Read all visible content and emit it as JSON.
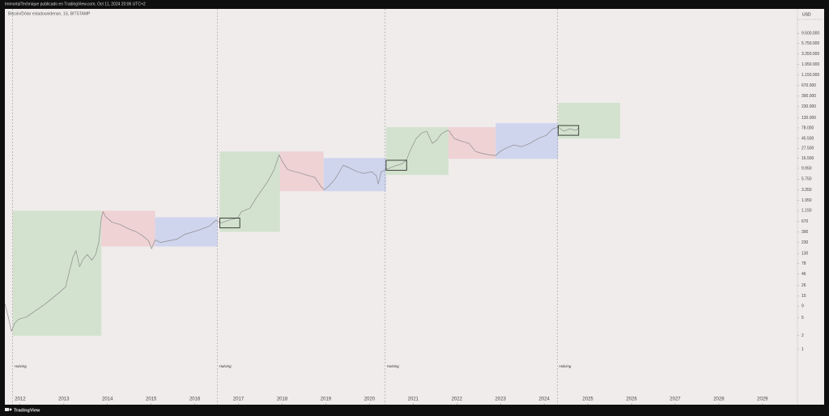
{
  "header": "ImmortalTechnique publicado en TradingView.com, Oct 11, 2024 20:06 UTC+2",
  "footer": "TradingView",
  "chart_data": {
    "type": "line",
    "currency": "USD",
    "log_scale": true,
    "grid": false,
    "xlim": [
      2011.65,
      2029.8
    ],
    "xticks": [
      2012,
      2013,
      2014,
      2015,
      2016,
      2017,
      2018,
      2019,
      2020,
      2021,
      2022,
      2023,
      2024,
      2025,
      2026,
      2027,
      2028,
      2029
    ],
    "ylim": [
      0.06,
      33000000
    ],
    "yticks": [
      {
        "value": 9500000,
        "label": "9.500.000"
      },
      {
        "value": 5750000,
        "label": "5.750.000"
      },
      {
        "value": 3350000,
        "label": "3.350.000"
      },
      {
        "value": 1950000,
        "label": "1.950.000"
      },
      {
        "value": 1150000,
        "label": "1.150.000"
      },
      {
        "value": 670000,
        "label": "670.000"
      },
      {
        "value": 390000,
        "label": "390.000"
      },
      {
        "value": 230000,
        "label": "230.000"
      },
      {
        "value": 130000,
        "label": "130.000"
      },
      {
        "value": 78000,
        "label": "78.000"
      },
      {
        "value": 45500,
        "label": "45.500"
      },
      {
        "value": 27500,
        "label": "27.500"
      },
      {
        "value": 16500,
        "label": "16.500"
      },
      {
        "value": 9950,
        "label": "9.950"
      },
      {
        "value": 5750,
        "label": "5.750"
      },
      {
        "value": 3350,
        "label": "3.350"
      },
      {
        "value": 1950,
        "label": "1.950"
      },
      {
        "value": 1150,
        "label": "1.150"
      },
      670,
      390,
      230,
      130,
      78,
      46,
      26,
      15,
      9,
      5,
      2,
      1
    ],
    "x": [
      2011.65,
      2011.72,
      2011.8,
      2011.87,
      2011.96,
      2012.15,
      2012.33,
      2012.52,
      2012.71,
      2012.89,
      2013.04,
      2013.13,
      2013.21,
      2013.28,
      2013.36,
      2013.45,
      2013.54,
      2013.64,
      2013.73,
      2013.8,
      2013.86,
      2013.9,
      2013.95,
      2014.1,
      2014.29,
      2014.47,
      2014.66,
      2014.81,
      2014.94,
      2015.01,
      2015.09,
      2015.22,
      2015.4,
      2015.59,
      2015.77,
      2015.96,
      2016.14,
      2016.33,
      2016.48,
      2016.61,
      2016.8,
      2016.98,
      2017.07,
      2017.26,
      2017.41,
      2017.54,
      2017.67,
      2017.82,
      2017.93,
      2018.0,
      2018.12,
      2018.23,
      2018.38,
      2018.56,
      2018.75,
      2018.9,
      2018.97,
      2019.08,
      2019.21,
      2019.4,
      2019.53,
      2019.68,
      2019.86,
      2020.05,
      2020.16,
      2020.2,
      2020.27,
      2020.38,
      2020.57,
      2020.75,
      2020.85,
      2020.94,
      2021.07,
      2021.2,
      2021.31,
      2021.44,
      2021.54,
      2021.65,
      2021.78,
      2021.83,
      2021.94,
      2022.09,
      2022.28,
      2022.43,
      2022.56,
      2022.74,
      2022.89,
      2022.99,
      2023.12,
      2023.3,
      2023.49,
      2023.67,
      2023.86,
      2024.05,
      2024.2,
      2024.32,
      2024.45,
      2024.59,
      2024.73,
      2024.79
    ],
    "series": [
      {
        "name": "Bitcoin/Dólar estadounidense, 1S, BITSTAMP",
        "color": "#8c8c8c",
        "values": [
          10.4,
          5.6,
          2.5,
          3.7,
          4.6,
          5.2,
          6.9,
          9.2,
          12.8,
          17.8,
          23.8,
          54,
          109,
          152,
          67,
          101,
          124,
          93,
          124,
          230,
          794,
          1104,
          862,
          645,
          570,
          464,
          393,
          320,
          250,
          166,
          260,
          230,
          250,
          271,
          347,
          393,
          445,
          525,
          701,
          619,
          730,
          794,
          1104,
          1300,
          2230,
          3360,
          5080,
          9430,
          19800,
          14300,
          9430,
          8680,
          7990,
          7070,
          6250,
          3810,
          3360,
          4140,
          5750,
          11600,
          10300,
          8680,
          7670,
          8340,
          6780,
          4490,
          8340,
          9430,
          11100,
          12600,
          15500,
          25400,
          45300,
          60400,
          65600,
          35300,
          41700,
          58000,
          68300,
          65600,
          45300,
          40000,
          35300,
          23400,
          21500,
          19800,
          19000,
          23400,
          27600,
          32600,
          30000,
          35300,
          45300,
          53400,
          74300,
          80600,
          65600,
          74300,
          68300,
          77300
        ]
      }
    ],
    "boxes": [
      {
        "x": [
          2011.83,
          2013.86
        ],
        "y": [
          2.0,
          1150
        ],
        "color": "#c9dfc4"
      },
      {
        "x": [
          2013.86,
          2015.09
        ],
        "y": [
          187,
          1150
        ],
        "color": "#efc9cc"
      },
      {
        "x": [
          2015.09,
          2016.52
        ],
        "y": [
          187,
          827
        ],
        "color": "#c6cdef"
      },
      {
        "x": [
          2016.57,
          2017.95
        ],
        "y": [
          393,
          23400
        ],
        "color": "#c9dfc4"
      },
      {
        "x": [
          2017.95,
          2018.95
        ],
        "y": [
          3100,
          23400
        ],
        "color": "#efc9cc"
      },
      {
        "x": [
          2018.95,
          2020.38
        ],
        "y": [
          3100,
          16800
        ],
        "color": "#c6cdef"
      },
      {
        "x": [
          2020.38,
          2021.81
        ],
        "y": [
          7070,
          80600
        ],
        "color": "#c9dfc4"
      },
      {
        "x": [
          2021.81,
          2022.89
        ],
        "y": [
          16100,
          80600
        ],
        "color": "#efc9cc"
      },
      {
        "x": [
          2022.89,
          2024.32
        ],
        "y": [
          16100,
          99000
        ],
        "color": "#c6cdef"
      },
      {
        "x": [
          2024.32,
          2025.74
        ],
        "y": [
          45300,
          278000
        ],
        "color": "#c9dfc4"
      }
    ],
    "frames": [
      {
        "x": [
          2016.57,
          2017.03
        ],
        "y": [
          485,
          795
        ],
        "color": "#1a1a1a"
      },
      {
        "x": [
          2020.38,
          2020.85
        ],
        "y": [
          9030,
          15000
        ],
        "color": "#1a1a1a"
      },
      {
        "x": [
          2024.32,
          2024.79
        ],
        "y": [
          53500,
          87700
        ],
        "color": "#1a1a1a"
      }
    ],
    "halvings": [
      {
        "x": 2011.83,
        "text": "Halving"
      },
      {
        "x": 2016.52,
        "text": "Halving"
      },
      {
        "x": 2020.36,
        "text": "Halving"
      },
      {
        "x": 2024.3,
        "text": "Halving"
      }
    ]
  }
}
